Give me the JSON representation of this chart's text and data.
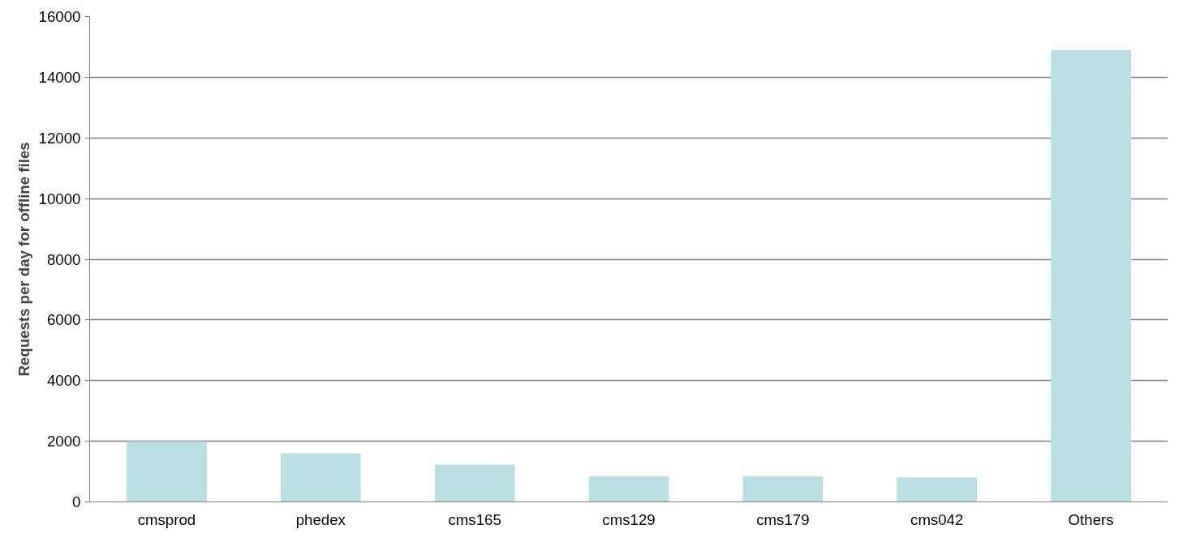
{
  "chart_data": {
    "type": "bar",
    "ylabel": "Requests per day for offline files",
    "categories": [
      "cmsprod",
      "phedex",
      "cms165",
      "cms129",
      "cms179",
      "cms042",
      "Others"
    ],
    "values": [
      2000,
      1600,
      1230,
      840,
      840,
      810,
      14900
    ],
    "color": "#b9dfe2",
    "ylim": [
      0,
      16000
    ],
    "yticks": [
      0,
      2000,
      4000,
      6000,
      8000,
      10000,
      12000,
      14000,
      16000
    ],
    "grid": "y"
  }
}
